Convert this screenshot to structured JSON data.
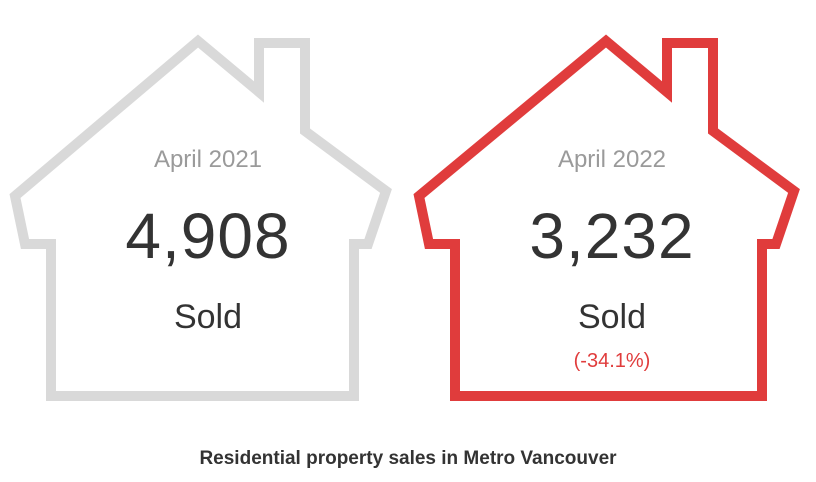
{
  "chart_data": {
    "type": "pictograph",
    "title": "Residential property sales in Metro Vancouver",
    "items": [
      {
        "period": "April 2021",
        "value": 4908,
        "value_label": "4,908",
        "unit": "Sold",
        "change_label": "",
        "color": "#d9d9d9"
      },
      {
        "period": "April 2022",
        "value": 3232,
        "value_label": "3,232",
        "unit": "Sold",
        "change_label": "(-34.1%)",
        "color": "#e03c3c"
      }
    ]
  },
  "colors": {
    "muted_text": "#9a9a9a",
    "main_text": "#333333",
    "accent": "#e03c3c"
  }
}
